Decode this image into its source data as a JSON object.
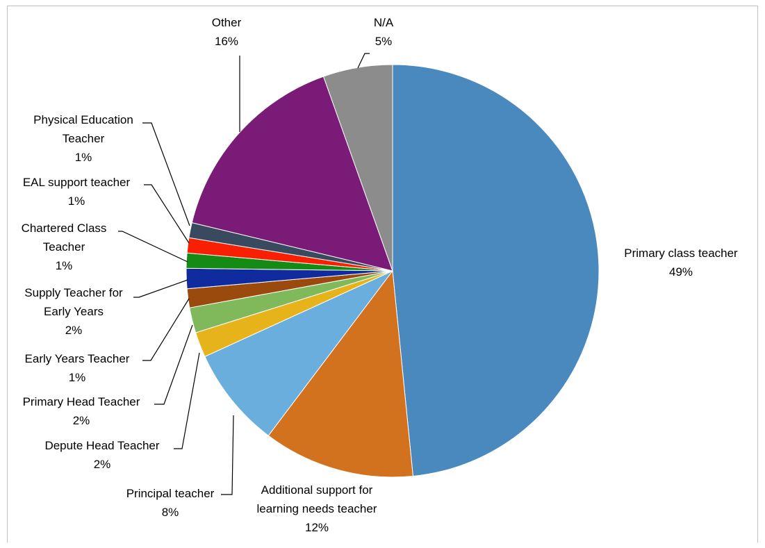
{
  "chart_data": {
    "type": "pie",
    "title": "",
    "slices": [
      {
        "label": "Primary class teacher",
        "pct_label": "49%",
        "value": 49,
        "color": "#4a89bd"
      },
      {
        "label": "Additional support for learning needs teacher",
        "pct_label": "12%",
        "value": 12,
        "color": "#d2721f"
      },
      {
        "label": "Principal teacher",
        "pct_label": "8%",
        "value": 8,
        "color": "#6aaede"
      },
      {
        "label": "Depute Head Teacher",
        "pct_label": "2%",
        "value": 2,
        "color": "#e6b31b"
      },
      {
        "label": "Primary Head Teacher",
        "pct_label": "2%",
        "value": 2,
        "color": "#7fb95c"
      },
      {
        "label": "Early Years Teacher",
        "pct_label": "1%",
        "value": 1.5,
        "color": "#9a4a0c"
      },
      {
        "label": "Supply Teacher for Early Years",
        "pct_label": "2%",
        "value": 1.6,
        "color": "#102b9e"
      },
      {
        "label": "Chartered Class Teacher",
        "pct_label": "1%",
        "value": 1.2,
        "color": "#158a15"
      },
      {
        "label": "EAL support teacher",
        "pct_label": "1%",
        "value": 1.2,
        "color": "#f91f03"
      },
      {
        "label": "Physical Education Teacher",
        "pct_label": "1%",
        "value": 1.2,
        "color": "#3a4a5e"
      },
      {
        "label": "Other",
        "pct_label": "16%",
        "value": 16,
        "color": "#7a1b77"
      },
      {
        "label": "N/A",
        "pct_label": "5%",
        "value": 5.5,
        "color": "#8c8c8c"
      }
    ],
    "legend": "none"
  }
}
